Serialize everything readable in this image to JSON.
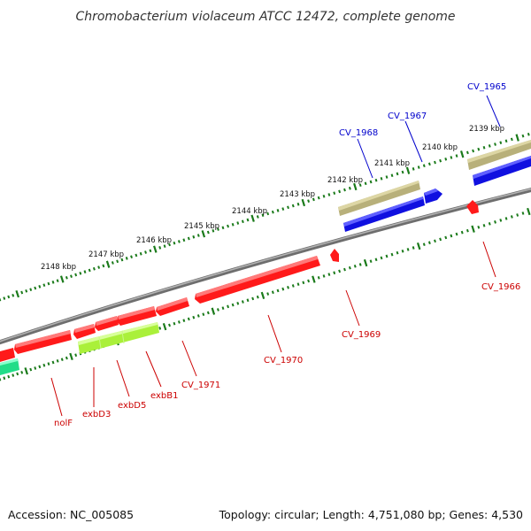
{
  "title": "Chromobacterium violaceum ATCC 12472, complete genome",
  "footer": {
    "accession": "Accession: NC_005085",
    "summary": "Topology: circular; Length: 4,751,080 bp; Genes: 4,530"
  },
  "colors": {
    "backbone": "#808080",
    "tick": "#1a7a1a",
    "red_gene": "#ff1a1a",
    "blue_gene": "#1010e0",
    "khaki_gene": "#b8b07a",
    "lime_gene": "#aaf03a",
    "teal_gene": "#22dd88",
    "label_red": "#cc0000",
    "label_blue": "#0000cc"
  },
  "kbp_labels": [
    "2139 kbp",
    "2140 kbp",
    "2141 kbp",
    "2142 kbp",
    "2143 kbp",
    "2144 kbp",
    "2145 kbp",
    "2146 kbp",
    "2147 kbp",
    "2148 kbp"
  ],
  "gene_labels": [
    {
      "id": "CV_1965",
      "strand": "outer"
    },
    {
      "id": "CV_1967",
      "strand": "outer"
    },
    {
      "id": "CV_1968",
      "strand": "outer"
    },
    {
      "id": "CV_1966",
      "strand": "inner"
    },
    {
      "id": "CV_1969",
      "strand": "inner"
    },
    {
      "id": "CV_1970",
      "strand": "inner"
    },
    {
      "id": "CV_1971",
      "strand": "inner"
    },
    {
      "id": "exbB1",
      "strand": "inner"
    },
    {
      "id": "exbD5",
      "strand": "inner"
    },
    {
      "id": "exbD3",
      "strand": "inner"
    },
    {
      "id": "nolF",
      "strand": "inner"
    }
  ]
}
